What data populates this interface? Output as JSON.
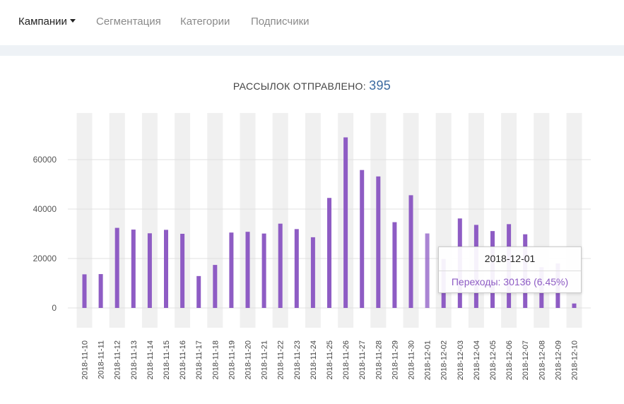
{
  "nav": {
    "items": [
      {
        "label": "Кампании",
        "active": true
      },
      {
        "label": "Сегментация",
        "active": false
      },
      {
        "label": "Категории",
        "active": false
      },
      {
        "label": "Подписчики",
        "active": false
      }
    ]
  },
  "summary": {
    "label": "РАССЫЛОК ОТПРАВЛЕНО:",
    "count": "395"
  },
  "tooltip": {
    "date": "2018-12-01",
    "text": "Переходы: 30136 (6.45%)"
  },
  "colors": {
    "bar": "#8e5cc4",
    "band": "#f0f0f0",
    "grid": "#e0e0e0",
    "accent": "#3b6aa0"
  },
  "chart_data": {
    "type": "bar",
    "categories": [
      "2018-11-10",
      "2018-11-11",
      "2018-11-12",
      "2018-11-13",
      "2018-11-14",
      "2018-11-15",
      "2018-11-16",
      "2018-11-17",
      "2018-11-18",
      "2018-11-19",
      "2018-11-20",
      "2018-11-21",
      "2018-11-22",
      "2018-11-23",
      "2018-11-24",
      "2018-11-25",
      "2018-11-26",
      "2018-11-27",
      "2018-11-28",
      "2018-11-29",
      "2018-11-30",
      "2018-12-01",
      "2018-12-02",
      "2018-12-03",
      "2018-12-04",
      "2018-12-05",
      "2018-12-06",
      "2018-12-07",
      "2018-12-08",
      "2018-12-09",
      "2018-12-10"
    ],
    "series": [
      {
        "values": [
          13600,
          13700,
          32400,
          31700,
          30200,
          31600,
          30000,
          12900,
          17400,
          30500,
          30800,
          30100,
          34100,
          31900,
          28600,
          44500,
          69000,
          55800,
          53200,
          34700,
          45600,
          30136,
          19800,
          36200,
          33600,
          31100,
          33900,
          29800,
          16500,
          18000,
          1800
        ]
      }
    ],
    "yticks": [
      0,
      20000,
      40000,
      60000
    ],
    "ylim": [
      -8000,
      79000
    ],
    "grid": true,
    "highlight_index": 21
  }
}
